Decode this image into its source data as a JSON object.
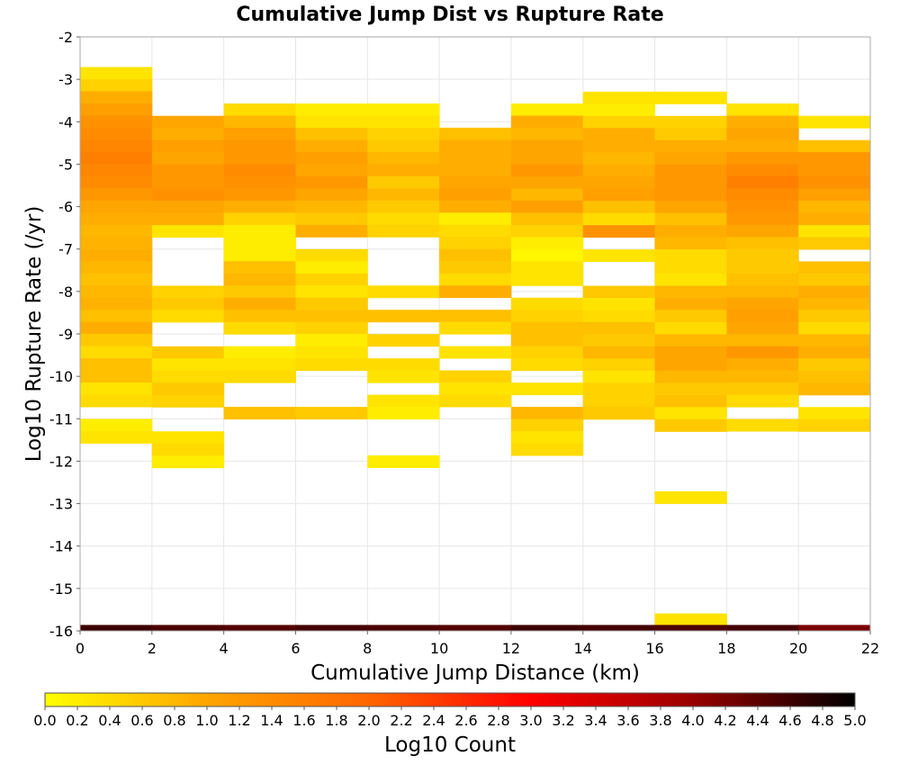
{
  "chart_data": {
    "type": "heatmap",
    "title": "Cumulative Jump Dist vs Rupture Rate",
    "xlabel": "Cumulative Jump Distance (km)",
    "ylabel": "Log10 Rupture Rate (/yr)",
    "xlim": [
      0,
      22
    ],
    "ylim": [
      -16,
      -2
    ],
    "x_ticks": [
      "0",
      "2",
      "4",
      "6",
      "8",
      "10",
      "12",
      "14",
      "16",
      "18",
      "20",
      "22"
    ],
    "y_ticks": [
      "-2",
      "-3",
      "-4",
      "-5",
      "-6",
      "-7",
      "-8",
      "-9",
      "-10",
      "-11",
      "-12",
      "-13",
      "-14",
      "-15",
      "-16"
    ],
    "x_bin_width": 2,
    "y_bin_height": 0.286,
    "grid": true,
    "colorbar": {
      "label": "Log10 Count",
      "range": [
        0,
        5
      ],
      "ticks": [
        "0.0",
        "0.2",
        "0.4",
        "0.6",
        "0.8",
        "1.0",
        "1.2",
        "1.4",
        "1.6",
        "1.8",
        "2.0",
        "2.2",
        "2.4",
        "2.6",
        "2.8",
        "3.0",
        "3.2",
        "3.4",
        "3.6",
        "3.8",
        "4.0",
        "4.2",
        "4.4",
        "4.6",
        "4.8",
        "5.0"
      ],
      "colors": [
        "#ffff00",
        "#ffa500",
        "#ff6600",
        "#ff0000",
        "#990000",
        "#000000"
      ]
    },
    "columns": [
      {
        "x": 0,
        "y_top": -2.71,
        "values": [
          0.3,
          0.5,
          0.9,
          1.1,
          1.3,
          1.4,
          1.5,
          1.6,
          1.5,
          1.4,
          1.2,
          1.0,
          0.9,
          0.8,
          0.85,
          0.9,
          0.8,
          0.7,
          0.8,
          0.85,
          0.7,
          0.9,
          0.6,
          0.4,
          0.7,
          0.7,
          0.3,
          0.4,
          null,
          0.2,
          0.3
        ]
      },
      {
        "x": 2,
        "y_top": -3.86,
        "values": [
          1.0,
          0.9,
          1.1,
          1.0,
          1.2,
          1.2,
          1.3,
          1.0,
          0.9,
          0.3,
          null,
          null,
          null,
          null,
          0.5,
          0.6,
          0.4,
          null,
          null,
          0.6,
          0.3,
          0.4,
          0.6,
          0.5,
          null,
          null,
          0.3,
          0.4,
          0.2
        ]
      },
      {
        "x": 4,
        "y_top": -3.57,
        "values": [
          0.4,
          0.8,
          1.1,
          1.2,
          1.2,
          1.4,
          1.3,
          1.2,
          0.9,
          0.5,
          0.2,
          0.2,
          0.2,
          0.7,
          0.8,
          0.6,
          0.9,
          0.7,
          0.4,
          null,
          0.2,
          0.3,
          0.4,
          null,
          null,
          0.7
        ]
      },
      {
        "x": 6,
        "y_top": -3.57,
        "values": [
          0.2,
          0.3,
          0.7,
          0.9,
          1.1,
          1.0,
          1.2,
          1.0,
          0.8,
          0.6,
          0.9,
          null,
          0.4,
          0.2,
          0.5,
          0.3,
          0.6,
          0.7,
          0.5,
          0.2,
          0.3,
          0.4,
          null,
          null,
          null,
          0.6
        ]
      },
      {
        "x": 8,
        "y_top": -3.57,
        "values": [
          0.2,
          0.3,
          0.5,
          0.6,
          0.8,
          0.9,
          0.6,
          0.8,
          0.6,
          0.4,
          0.5,
          null,
          null,
          null,
          null,
          0.4,
          null,
          0.7,
          null,
          0.5,
          null,
          0.4,
          0.3,
          null,
          0.3,
          0.2,
          null,
          null,
          null,
          0.2
        ]
      },
      {
        "x": 10,
        "y_top": -4.14,
        "values": [
          0.7,
          0.9,
          0.9,
          0.9,
          1.0,
          1.1,
          0.9,
          0.2,
          0.4,
          0.5,
          0.7,
          0.6,
          0.4,
          0.9,
          null,
          0.7,
          0.4,
          null,
          0.3,
          null,
          0.5,
          0.3,
          0.4
        ]
      },
      {
        "x": 12,
        "y_top": -3.57,
        "values": [
          0.2,
          0.9,
          0.8,
          1.0,
          1.0,
          1.2,
          1.0,
          0.8,
          1.1,
          0.7,
          0.5,
          0.2,
          0.1,
          0.3,
          0.3,
          null,
          0.4,
          0.5,
          0.7,
          0.7,
          0.5,
          0.4,
          null,
          0.3,
          null,
          0.8,
          0.5,
          0.3,
          0.4
        ]
      },
      {
        "x": 14,
        "y_top": -3.29,
        "values": [
          0.3,
          0.2,
          0.5,
          0.9,
          0.9,
          0.8,
          0.9,
          1.0,
          1.1,
          0.7,
          0.4,
          1.3,
          null,
          0.3,
          null,
          null,
          0.6,
          0.3,
          0.4,
          0.7,
          0.6,
          0.8,
          0.5,
          0.3,
          0.5,
          0.5,
          0.6
        ]
      },
      {
        "x": 16,
        "y_top": -3.29,
        "values": [
          0.3,
          null,
          0.5,
          0.6,
          0.9,
          1.0,
          1.2,
          1.2,
          1.2,
          1.0,
          0.7,
          0.9,
          0.8,
          0.4,
          0.4,
          0.3,
          0.8,
          0.9,
          0.6,
          0.4,
          0.8,
          1.0,
          1.0,
          0.8,
          0.6,
          0.7,
          0.3,
          0.6,
          null,
          null,
          null,
          null,
          null,
          null,
          null,
          null,
          null,
          null,
          null,
          null,
          null,
          null,
          null,
          0.3
        ]
      },
      {
        "x": 18,
        "y_top": -3.57,
        "values": [
          0.3,
          0.9,
          1.0,
          0.9,
          1.2,
          1.4,
          1.6,
          1.4,
          1.3,
          1.2,
          1.0,
          0.7,
          0.6,
          0.6,
          0.7,
          0.8,
          1.0,
          1.1,
          1.0,
          0.8,
          1.2,
          0.9,
          0.8,
          0.6,
          0.4,
          null,
          0.4
        ]
      },
      {
        "x": 20,
        "y_top": -3.86,
        "values": [
          0.3,
          null,
          0.7,
          1.2,
          1.2,
          1.3,
          1.1,
          0.8,
          0.9,
          0.3,
          0.6,
          null,
          0.7,
          0.6,
          0.9,
          0.8,
          0.6,
          0.4,
          0.8,
          0.9,
          0.6,
          0.7,
          0.8,
          null,
          0.3,
          0.5
        ]
      },
      {
        "x": 16,
        "y_top": -12.71,
        "values": [
          0.3
        ]
      },
      {
        "x": 0,
        "y_top": -15.86,
        "band": true,
        "values": [
          4.6,
          4.5,
          4.45,
          4.55,
          4.5,
          4.45,
          4.6,
          4.55,
          4.5,
          4.55,
          4.2
        ]
      }
    ]
  }
}
